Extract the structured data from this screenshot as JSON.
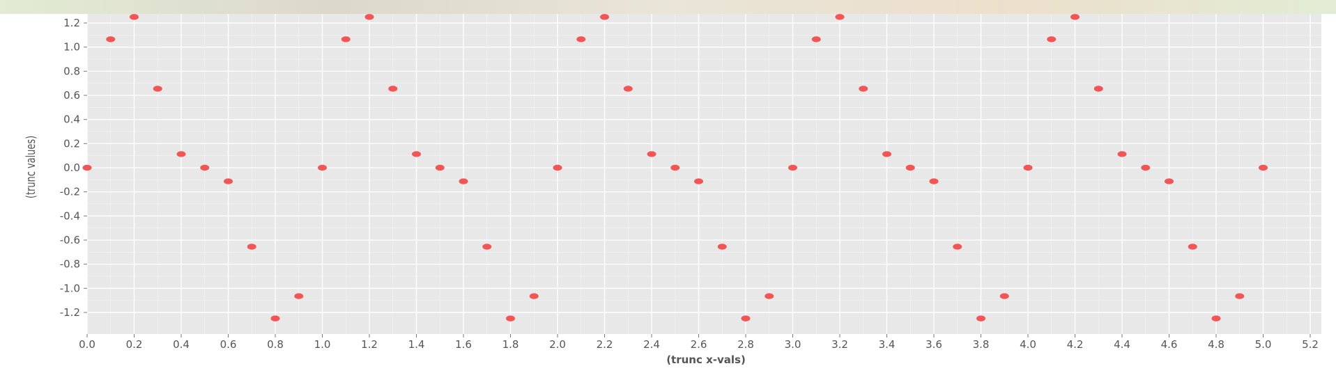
{
  "chart_data": {
    "type": "scatter",
    "title": "",
    "xlabel": "(trunc x-vals)",
    "ylabel": "(trunc values)",
    "xlim": [
      0.0,
      5.3
    ],
    "ylim": [
      -1.38,
      1.3
    ],
    "grid": true,
    "x_ticks": [
      "0.0",
      "0.2",
      "0.4",
      "0.6",
      "0.8",
      "1.0",
      "1.2",
      "1.4",
      "1.6",
      "1.8",
      "2.0",
      "2.2",
      "2.4",
      "2.6",
      "2.8",
      "3.0",
      "3.2",
      "3.4",
      "3.6",
      "3.8",
      "4.0",
      "4.2",
      "4.4",
      "4.6",
      "4.8",
      "5.0",
      "5.2"
    ],
    "y_ticks": [
      "1.2",
      "1.0",
      "0.8",
      "0.6",
      "0.4",
      "0.2",
      "0.0",
      "-0.2",
      "-0.4",
      "-0.6",
      "-0.8",
      "-1.0",
      "-1.2"
    ],
    "x": [
      0.0,
      0.1,
      0.2,
      0.3,
      0.4,
      0.5,
      0.6,
      0.7,
      0.8,
      0.9,
      1.0,
      1.1,
      1.2,
      1.3,
      1.4,
      1.5,
      1.6,
      1.7,
      1.8,
      1.9,
      2.0,
      2.1,
      2.2,
      2.3,
      2.4,
      2.5,
      2.6,
      2.7,
      2.8,
      2.9,
      3.0,
      3.1,
      3.2,
      3.3,
      3.4,
      3.5,
      3.6,
      3.7,
      3.8,
      3.9,
      4.0,
      4.1,
      4.2,
      4.3,
      4.4,
      4.5,
      4.6,
      4.7,
      4.8,
      4.9,
      5.0
    ],
    "y": [
      0.0,
      1.065,
      1.25,
      0.655,
      0.113,
      0.0,
      -0.113,
      -0.655,
      -1.25,
      -1.065,
      0.0,
      1.065,
      1.25,
      0.655,
      0.113,
      0.0,
      -0.113,
      -0.655,
      -1.25,
      -1.065,
      0.0,
      1.065,
      1.25,
      0.655,
      0.113,
      0.0,
      -0.113,
      -0.655,
      -1.25,
      -1.065,
      0.0,
      1.065,
      1.25,
      0.655,
      0.113,
      0.0,
      -0.113,
      -0.655,
      -1.25,
      -1.065,
      0.0,
      1.065,
      1.25,
      0.655,
      0.113,
      0.0,
      -0.113,
      -0.655,
      -1.25,
      -1.065,
      0.0
    ],
    "colors": {
      "marker": "#f25555",
      "panel": "#e8e8e8",
      "grid": "#ffffff",
      "tick_text": "#555555",
      "label_text": "#555555"
    }
  }
}
